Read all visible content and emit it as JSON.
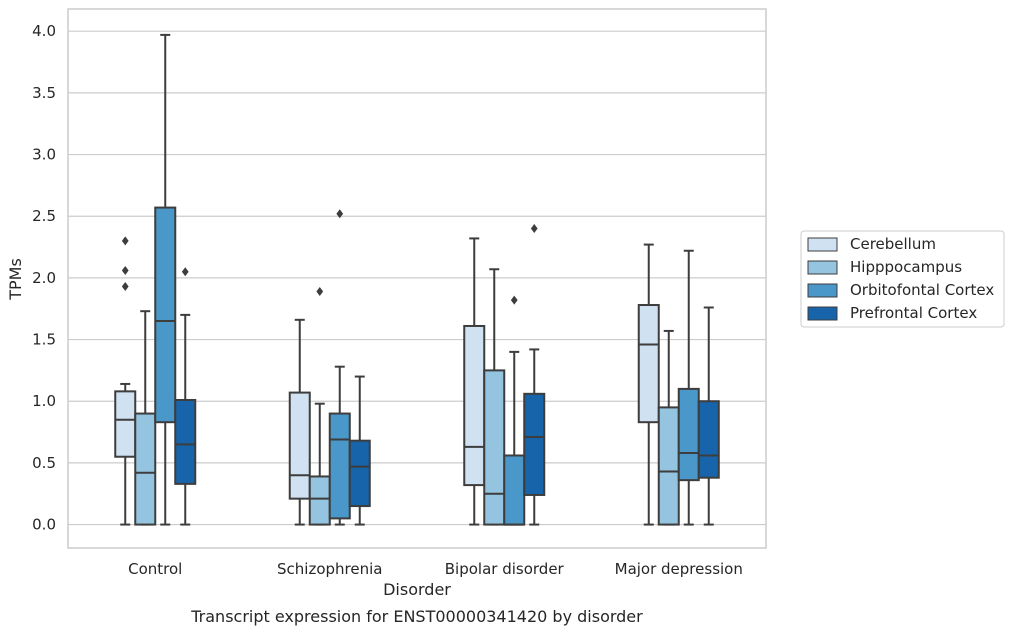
{
  "chart_data": {
    "type": "box",
    "title": "",
    "caption": "Transcript expression for ENST00000341420 by disorder",
    "xlabel": "Disorder",
    "ylabel": "TPMs",
    "ylim": [
      -0.19,
      4.18
    ],
    "yticks": [
      "0.0",
      "0.5",
      "1.0",
      "1.5",
      "2.0",
      "2.5",
      "3.0",
      "3.5",
      "4.0"
    ],
    "grid": true,
    "legend_position": "right",
    "categories": [
      "Control",
      "Schizophrenia",
      "Bipolar disorder",
      "Major depression"
    ],
    "series": [
      {
        "name": "Cerebellum",
        "color": "#d0e1f2",
        "boxes": [
          {
            "whisker_low": 0.0,
            "q1": 0.55,
            "median": 0.85,
            "q3": 1.08,
            "whisker_high": 1.14,
            "outliers": [
              1.93,
              2.06,
              2.3
            ]
          },
          {
            "whisker_low": 0.0,
            "q1": 0.21,
            "median": 0.4,
            "q3": 1.07,
            "whisker_high": 1.66,
            "outliers": []
          },
          {
            "whisker_low": 0.0,
            "q1": 0.32,
            "median": 0.63,
            "q3": 1.61,
            "whisker_high": 2.32,
            "outliers": []
          },
          {
            "whisker_low": 0.0,
            "q1": 0.83,
            "median": 1.46,
            "q3": 1.78,
            "whisker_high": 2.27,
            "outliers": []
          }
        ]
      },
      {
        "name": "Hipppocampus",
        "color": "#94c4df",
        "boxes": [
          {
            "whisker_low": 0.0,
            "q1": 0.0,
            "median": 0.42,
            "q3": 0.9,
            "whisker_high": 1.73,
            "outliers": []
          },
          {
            "whisker_low": 0.0,
            "q1": 0.0,
            "median": 0.21,
            "q3": 0.39,
            "whisker_high": 0.98,
            "outliers": [
              1.89
            ]
          },
          {
            "whisker_low": 0.0,
            "q1": 0.0,
            "median": 0.25,
            "q3": 1.25,
            "whisker_high": 2.07,
            "outliers": []
          },
          {
            "whisker_low": 0.0,
            "q1": 0.0,
            "median": 0.43,
            "q3": 0.95,
            "whisker_high": 1.57,
            "outliers": []
          }
        ]
      },
      {
        "name": "Orbitofontal Cortex",
        "color": "#4a98c9",
        "boxes": [
          {
            "whisker_low": 0.0,
            "q1": 0.83,
            "median": 1.65,
            "q3": 2.57,
            "whisker_high": 3.97,
            "outliers": []
          },
          {
            "whisker_low": 0.0,
            "q1": 0.05,
            "median": 0.69,
            "q3": 0.9,
            "whisker_high": 1.28,
            "outliers": [
              2.52
            ]
          },
          {
            "whisker_low": 0.0,
            "q1": 0.0,
            "median": 0.0,
            "q3": 0.56,
            "whisker_high": 1.4,
            "outliers": [
              1.82
            ]
          },
          {
            "whisker_low": 0.0,
            "q1": 0.36,
            "median": 0.58,
            "q3": 1.1,
            "whisker_high": 2.22,
            "outliers": []
          }
        ]
      },
      {
        "name": "Prefrontal Cortex",
        "color": "#1764ab",
        "boxes": [
          {
            "whisker_low": 0.0,
            "q1": 0.33,
            "median": 0.65,
            "q3": 1.01,
            "whisker_high": 1.7,
            "outliers": [
              2.05
            ]
          },
          {
            "whisker_low": 0.0,
            "q1": 0.15,
            "median": 0.47,
            "q3": 0.68,
            "whisker_high": 1.2,
            "outliers": []
          },
          {
            "whisker_low": 0.0,
            "q1": 0.24,
            "median": 0.71,
            "q3": 1.06,
            "whisker_high": 1.42,
            "outliers": [
              2.4
            ]
          },
          {
            "whisker_low": 0.0,
            "q1": 0.38,
            "median": 0.56,
            "q3": 1.0,
            "whisker_high": 1.76,
            "outliers": []
          }
        ]
      }
    ]
  }
}
